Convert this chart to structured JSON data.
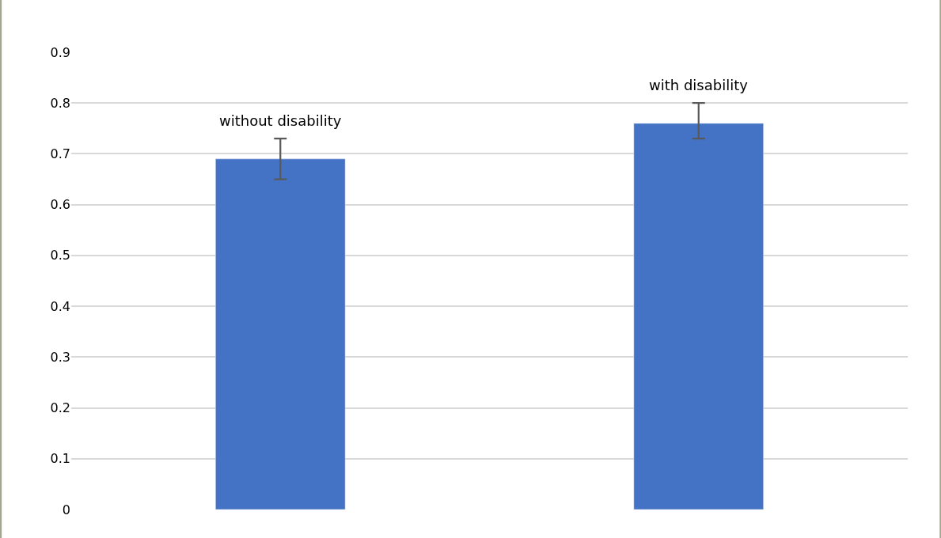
{
  "chart_data": {
    "type": "bar",
    "categories": [
      null,
      null
    ],
    "values": [
      0.69,
      0.76
    ],
    "color": "#4472c4",
    "errors": [
      [
        0.65,
        0.73
      ],
      [
        0.73,
        0.8
      ]
    ],
    "annotations": [
      {
        "text": "without disability",
        "y": 0.73
      },
      {
        "text": "with disability",
        "y": 0.8
      }
    ],
    "ylim": [
      0,
      0.9
    ],
    "yticks": [
      0,
      0.1,
      0.2,
      0.3,
      0.4,
      0.5,
      0.6,
      0.7,
      0.8,
      0.9
    ],
    "grid": "y",
    "tick_labels": "y",
    "legend": false
  }
}
